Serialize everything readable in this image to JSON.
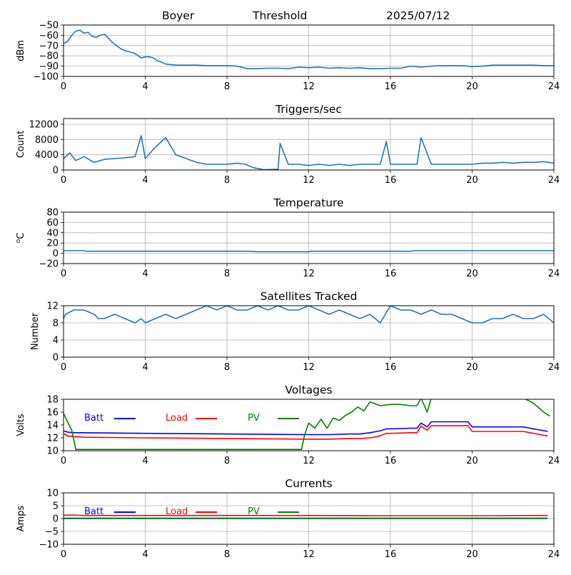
{
  "header": {
    "station": "Boyer",
    "mode": "Threshold",
    "date": "2025/07/12"
  },
  "chart_data": [
    {
      "type": "line",
      "title": "",
      "xlabel": "",
      "ylabel": "dBm",
      "xlim": [
        0,
        24
      ],
      "ylim": [
        -100,
        -50
      ],
      "xticks": [
        0,
        4,
        8,
        12,
        16,
        20,
        24
      ],
      "yticks": [
        -100,
        -90,
        -80,
        -70,
        -60,
        -50
      ],
      "grid": true,
      "series": [
        {
          "color": "#1f77b4",
          "x": [
            0,
            0.2,
            0.4,
            0.6,
            0.8,
            1.0,
            1.2,
            1.4,
            1.6,
            1.8,
            2.0,
            2.2,
            2.4,
            2.6,
            2.8,
            3.0,
            3.2,
            3.4,
            3.6,
            3.8,
            4.0,
            4.2,
            4.4,
            4.6,
            4.8,
            5.0,
            5.5,
            6,
            6.5,
            7,
            7.5,
            8,
            8.5,
            9,
            9.5,
            10,
            10.5,
            11,
            11.5,
            12,
            12.5,
            13,
            13.5,
            14,
            14.5,
            15,
            15.5,
            16,
            16.5,
            17,
            17.5,
            18,
            18.5,
            19,
            19.5,
            20,
            20.5,
            21,
            21.5,
            22,
            22.5,
            23,
            23.5,
            24
          ],
          "values": [
            -68,
            -66,
            -60,
            -56,
            -55,
            -58,
            -57,
            -61,
            -62,
            -60,
            -59,
            -63,
            -67,
            -70,
            -73,
            -75,
            -76,
            -77,
            -79,
            -82,
            -81,
            -81,
            -82,
            -85,
            -86,
            -88,
            -89,
            -89,
            -89,
            -89.5,
            -89.5,
            -89.5,
            -90,
            -92.5,
            -92.5,
            -92,
            -92,
            -92.5,
            -91,
            -91.5,
            -91,
            -92,
            -91.5,
            -92,
            -91.5,
            -92.5,
            -92.5,
            -92,
            -92,
            -90,
            -91,
            -90,
            -89.5,
            -89.5,
            -89.5,
            -90.5,
            -90,
            -89,
            -89,
            -89,
            -89,
            -89,
            -89.5,
            -89.5
          ]
        }
      ]
    },
    {
      "type": "line",
      "title": "Triggers/sec",
      "xlabel": "",
      "ylabel": "Count",
      "xlim": [
        0,
        24
      ],
      "ylim": [
        0,
        13500
      ],
      "xticks": [
        0,
        4,
        8,
        12,
        16,
        20,
        24
      ],
      "yticks": [
        0,
        4000,
        8000,
        12000
      ],
      "grid": true,
      "series": [
        {
          "color": "#1f77b4",
          "x": [
            0,
            0.3,
            0.6,
            1.0,
            1.5,
            2.0,
            2.5,
            3.0,
            3.5,
            3.8,
            4.0,
            4.5,
            5.0,
            5.5,
            6.0,
            6.5,
            7.0,
            7.5,
            8.0,
            8.5,
            8.9,
            9.3,
            9.8,
            10.5,
            10.6,
            11,
            11.5,
            12,
            12.5,
            13,
            13.5,
            14,
            14.5,
            15,
            15.5,
            15.8,
            16,
            16.5,
            17,
            17.3,
            17.5,
            18,
            18.5,
            19,
            19.5,
            20,
            20.5,
            21,
            21.5,
            22,
            22.5,
            23,
            23.5,
            24
          ],
          "values": [
            3000,
            4500,
            2500,
            3500,
            2000,
            2800,
            3000,
            3200,
            3500,
            9000,
            3000,
            6000,
            8500,
            4000,
            3000,
            2000,
            1500,
            1500,
            1500,
            1800,
            1500,
            600,
            100,
            200,
            7000,
            1500,
            1500,
            1200,
            1500,
            1200,
            1500,
            1200,
            1500,
            1500,
            1500,
            7500,
            1500,
            1500,
            1500,
            1500,
            8500,
            1500,
            1500,
            1500,
            1500,
            1500,
            1800,
            1800,
            2000,
            1800,
            2000,
            2000,
            2200,
            1800
          ]
        }
      ]
    },
    {
      "type": "line",
      "title": "Temperature",
      "xlabel": "",
      "ylabel": "oC",
      "xlim": [
        0,
        24
      ],
      "ylim": [
        -20,
        80
      ],
      "xticks": [
        0,
        4,
        8,
        12,
        16,
        20,
        24
      ],
      "yticks": [
        -20,
        0,
        20,
        40,
        60,
        80
      ],
      "grid": true,
      "series": [
        {
          "color": "#1f77b4",
          "x": [
            0,
            0.5,
            1.0,
            1.1,
            2,
            4,
            6,
            8,
            9,
            9.5,
            10,
            11,
            12,
            12.1,
            14,
            16,
            17,
            17.2,
            18,
            20,
            22,
            24
          ],
          "values": [
            5,
            5,
            5,
            4,
            4,
            4,
            4,
            4,
            4,
            3,
            3,
            3,
            3,
            4,
            4,
            4,
            4,
            5,
            5,
            5,
            5,
            5
          ]
        }
      ]
    },
    {
      "type": "line",
      "title": "Satellites Tracked",
      "xlabel": "",
      "ylabel": "Number",
      "xlim": [
        0,
        24
      ],
      "ylim": [
        0,
        12
      ],
      "xticks": [
        0,
        4,
        8,
        12,
        16,
        20,
        24
      ],
      "yticks": [
        0,
        4,
        8,
        12
      ],
      "grid": true,
      "series": [
        {
          "color": "#1f77b4",
          "x": [
            0,
            0.1,
            0.5,
            1.0,
            1.5,
            1.7,
            2.0,
            2.5,
            3.0,
            3.5,
            3.8,
            4.0,
            4.5,
            5.0,
            5.5,
            6.0,
            6.5,
            7.0,
            7.5,
            8.0,
            8.5,
            9.0,
            9.5,
            10.0,
            10.5,
            11.0,
            11.5,
            12.0,
            12.5,
            13.0,
            13.5,
            14.0,
            14.5,
            15.0,
            15.5,
            16.0,
            16.5,
            17.0,
            17.5,
            18.0,
            18.5,
            19.0,
            19.5,
            20.0,
            20.5,
            21.0,
            21.5,
            22.0,
            22.5,
            23.0,
            23.5,
            24.0
          ],
          "values": [
            9,
            10,
            11,
            11,
            10,
            9,
            9,
            10,
            9,
            8,
            9,
            8,
            9,
            10,
            9,
            10,
            11,
            12,
            11,
            12,
            11,
            11,
            12,
            11,
            12,
            11,
            11,
            12,
            11,
            10,
            11,
            10,
            9,
            10,
            8,
            12,
            11,
            11,
            10,
            11,
            10,
            10,
            9,
            8,
            8,
            9,
            9,
            10,
            9,
            9,
            10,
            8
          ]
        }
      ]
    },
    {
      "type": "line",
      "title": "Voltages",
      "xlabel": "",
      "ylabel": "Volts",
      "xlim": [
        0,
        24
      ],
      "ylim": [
        10,
        18
      ],
      "xticks": [
        0,
        4,
        8,
        12,
        16,
        20,
        24
      ],
      "yticks": [
        10,
        12,
        14,
        16,
        18
      ],
      "grid": false,
      "legend": "top-left",
      "series": [
        {
          "name": "Batt",
          "color": "#0000ff",
          "x": [
            0,
            0.2,
            0.5,
            1,
            4,
            8,
            12,
            13,
            14,
            14.5,
            15,
            15.5,
            15.8,
            16,
            17,
            17.3,
            17.5,
            17.8,
            18,
            19,
            19.8,
            20,
            21,
            22,
            22.5,
            23,
            23.7
          ],
          "values": [
            13.1,
            12.9,
            12.8,
            12.8,
            12.7,
            12.6,
            12.5,
            12.5,
            12.6,
            12.6,
            12.8,
            13.1,
            13.4,
            13.4,
            13.5,
            13.5,
            14.3,
            13.7,
            14.5,
            14.5,
            14.5,
            13.7,
            13.7,
            13.7,
            13.7,
            13.4,
            13.0
          ]
        },
        {
          "name": "Load",
          "color": "#ff0000",
          "x": [
            0,
            0.2,
            0.5,
            1,
            4,
            8,
            12,
            13,
            14,
            14.5,
            15,
            15.5,
            15.8,
            16,
            17,
            17.3,
            17.5,
            17.8,
            18,
            19,
            19.8,
            20,
            21,
            22,
            22.5,
            23,
            23.7
          ],
          "values": [
            12.7,
            12.3,
            12.2,
            12.1,
            12.0,
            11.9,
            11.8,
            11.8,
            11.9,
            11.9,
            12.0,
            12.3,
            12.7,
            12.7,
            12.8,
            12.8,
            13.8,
            13.2,
            13.9,
            13.9,
            13.9,
            13.0,
            13.0,
            13.0,
            13.0,
            12.7,
            12.3
          ]
        },
        {
          "name": "PV",
          "color": "#008000",
          "x": [
            0,
            0.2,
            0.4,
            0.6,
            11.65,
            11.8,
            12.0,
            12.3,
            12.6,
            12.9,
            13.2,
            13.5,
            13.8,
            14.1,
            14.4,
            14.7,
            15.0,
            15.5,
            16.0,
            16.5,
            17.0,
            17.3,
            17.5,
            17.8,
            18.0,
            22.5,
            23,
            23.5,
            23.8
          ],
          "values": [
            15.8,
            14.5,
            13.2,
            10.2,
            10.2,
            12.5,
            14.3,
            13.5,
            14.9,
            13.5,
            15.1,
            14.7,
            15.5,
            16.0,
            16.8,
            16.2,
            17.6,
            17.0,
            17.2,
            17.2,
            17.0,
            17.0,
            18.2,
            16.0,
            18.2,
            18.2,
            17.4,
            16.0,
            15.4
          ]
        }
      ]
    },
    {
      "type": "line",
      "title": "Currents",
      "xlabel": "",
      "ylabel": "Amps",
      "xlim": [
        0,
        24
      ],
      "ylim": [
        -10,
        10
      ],
      "xticks": [
        0,
        4,
        8,
        12,
        16,
        20,
        24
      ],
      "yticks": [
        -10,
        -5,
        0,
        5,
        10
      ],
      "grid": true,
      "legend": "top-left",
      "series": [
        {
          "name": "Batt",
          "color": "#0000ff",
          "x": [
            0,
            23.7
          ],
          "values": [
            0.1,
            0.1
          ]
        },
        {
          "name": "Load",
          "color": "#ff0000",
          "x": [
            0,
            0.5,
            1,
            4,
            8,
            12,
            16,
            20,
            23.7
          ],
          "values": [
            1.3,
            1.4,
            1.2,
            1.2,
            1.2,
            1.2,
            1.1,
            1.1,
            1.2
          ]
        },
        {
          "name": "PV",
          "color": "#008000",
          "x": [
            0,
            23.7
          ],
          "values": [
            0.0,
            0.0
          ]
        }
      ]
    }
  ]
}
